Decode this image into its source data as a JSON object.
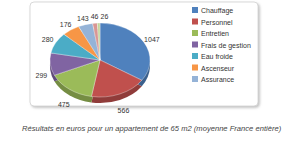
{
  "chart_data": {
    "type": "pie",
    "caption": "Résultats en euros pour un appartement de 65 m2 (moyenne France entière)",
    "categories": [
      "Chauffage",
      "Personnel",
      "Entretien",
      "Frais de gestion",
      "Eau froide",
      "Ascenseur",
      "Assurance",
      null,
      null
    ],
    "values": [
      1047,
      566,
      475,
      299,
      280,
      176,
      143,
      46,
      26
    ],
    "colors": [
      "#4f81bd",
      "#c0504d",
      "#9bbb59",
      "#8064a2",
      "#4bacc6",
      "#f79646",
      "#95b3d7",
      "#d99694",
      "#c3d69b"
    ],
    "data_labels": true,
    "legend": "right"
  }
}
